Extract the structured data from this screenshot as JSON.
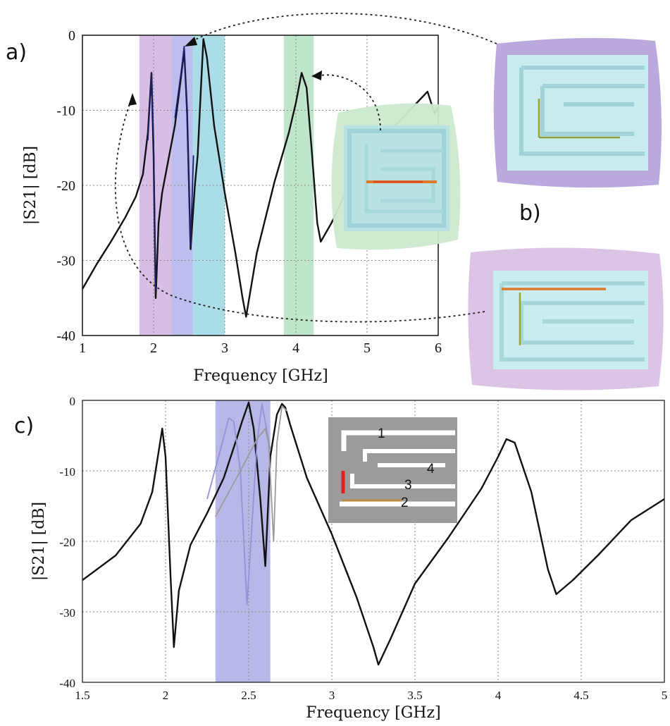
{
  "panel_labels": {
    "a": "a)",
    "b": "b)",
    "c": "c)"
  },
  "colors": {
    "band_violet": "#c9a8db",
    "band_blue": "#a7a7e8",
    "band_cyan": "#8fd2e0",
    "band_green": "#a9dcb9",
    "band_c": "#9f9fe0",
    "curve_main": "#111111",
    "curve_blue": "#1d1f6e",
    "curve_grey": "#9a9a9a",
    "curve_lightblue": "#9393d6",
    "inset_grey": "#9d9a9a",
    "inset_red": "#e02020"
  },
  "inset_labels": {
    "n1": "1",
    "n2": "2",
    "n3": "3",
    "n4": "4"
  },
  "chart_data": [
    {
      "type": "line",
      "panel": "a)",
      "xlabel": "Frequency [GHz]",
      "ylabel": "|S21| [dB]",
      "xlim": [
        1,
        6
      ],
      "ylim": [
        -40,
        0
      ],
      "xticks": [
        1,
        2,
        3,
        4,
        5,
        6
      ],
      "yticks": [
        0,
        -10,
        -20,
        -30,
        -40
      ],
      "grid": true,
      "highlight_bands": [
        {
          "x0": 1.8,
          "x1": 2.25,
          "color": "violet"
        },
        {
          "x0": 2.25,
          "x1": 2.55,
          "color": "blue"
        },
        {
          "x0": 2.55,
          "x1": 3.0,
          "color": "cyan"
        },
        {
          "x0": 3.83,
          "x1": 4.25,
          "color": "green"
        }
      ],
      "series": [
        {
          "color": "main",
          "x": [
            1.0,
            1.2,
            1.4,
            1.6,
            1.75,
            1.85,
            1.92,
            1.97,
            2.0,
            2.03,
            2.07,
            2.12,
            2.2,
            2.3,
            2.38,
            2.43,
            2.47,
            2.52,
            2.58,
            2.62,
            2.66,
            2.7,
            2.75,
            2.85,
            3.0,
            3.15,
            3.25,
            3.3,
            3.45,
            3.7,
            3.9,
            4.0,
            4.08,
            4.15,
            4.22,
            4.3,
            4.35,
            4.5,
            4.8,
            5.1,
            5.4,
            5.6,
            5.85,
            5.95,
            6.0
          ],
          "y": [
            -33.8,
            -30.5,
            -27.5,
            -24.3,
            -21.5,
            -18.5,
            -13,
            -5,
            -16,
            -35,
            -25,
            -21,
            -17,
            -12,
            -6,
            -2,
            -10,
            -28.5,
            -20,
            -16,
            -8,
            -0.5,
            -3,
            -12,
            -21,
            -29,
            -35,
            -37.5,
            -29,
            -19.5,
            -13,
            -9,
            -5,
            -7,
            -15,
            -25,
            -27.5,
            -25,
            -19,
            -15,
            -12,
            -10,
            -7.5,
            -10.5,
            -9.5
          ]
        },
        {
          "color": "blue",
          "x": [
            2.3,
            2.35,
            2.4,
            2.43,
            2.47,
            2.52,
            2.56
          ],
          "y": [
            -11,
            -7.5,
            -4,
            -1.5,
            -11,
            -28,
            -16
          ]
        },
        {
          "color": "blue",
          "x": [
            1.92,
            1.97,
            2.0,
            2.03
          ],
          "y": [
            -14,
            -5,
            -14,
            -34
          ]
        }
      ]
    },
    {
      "type": "line",
      "panel": "c)",
      "xlabel": "Frequency [GHz]",
      "ylabel": "|S21| [dB]",
      "xlim": [
        1.5,
        5
      ],
      "ylim": [
        -40,
        0
      ],
      "xticks": [
        1.5,
        2,
        2.5,
        3,
        3.5,
        4,
        4.5,
        5
      ],
      "yticks": [
        0,
        -10,
        -20,
        -30,
        -40
      ],
      "grid": true,
      "highlight_bands": [
        {
          "x0": 2.3,
          "x1": 2.63,
          "color": "c"
        }
      ],
      "series": [
        {
          "color": "main",
          "x": [
            1.5,
            1.7,
            1.85,
            1.92,
            1.96,
            1.98,
            2.0,
            2.03,
            2.05,
            2.08,
            2.15,
            2.25,
            2.35,
            2.42,
            2.46,
            2.5,
            2.53,
            2.57,
            2.6,
            2.63,
            2.67,
            2.7,
            2.72,
            2.75,
            2.85,
            3.0,
            3.15,
            3.25,
            3.28,
            3.35,
            3.5,
            3.7,
            3.9,
            4.0,
            4.05,
            4.1,
            4.2,
            4.3,
            4.35,
            4.45,
            4.6,
            4.8,
            5.0
          ],
          "y": [
            -25.5,
            -22,
            -17.5,
            -13,
            -7,
            -4,
            -8,
            -25,
            -35,
            -27,
            -20.5,
            -16,
            -11,
            -6,
            -3,
            -0.3,
            -4,
            -14,
            -23.5,
            -8,
            -2,
            -0.5,
            -1,
            -3.5,
            -11,
            -19,
            -28,
            -35,
            -37.5,
            -34,
            -26,
            -19.5,
            -12.5,
            -8,
            -5.5,
            -6,
            -13,
            -24,
            -27.5,
            -25.5,
            -22,
            -17,
            -14
          ]
        },
        {
          "color": "lightblue",
          "x": [
            2.25,
            2.33,
            2.38,
            2.41,
            2.45,
            2.49,
            2.55,
            2.58,
            2.63
          ],
          "y": [
            -14,
            -7,
            -2.5,
            -3,
            -10,
            -29,
            -6,
            -0.5,
            -7
          ]
        },
        {
          "color": "grey",
          "x": [
            2.3,
            2.45,
            2.55,
            2.6,
            2.62,
            2.65,
            2.67,
            2.7,
            2.73
          ],
          "y": [
            -16.5,
            -10,
            -5.5,
            -4,
            -6,
            -20,
            -6,
            -0.8,
            -1.5
          ]
        }
      ]
    }
  ]
}
